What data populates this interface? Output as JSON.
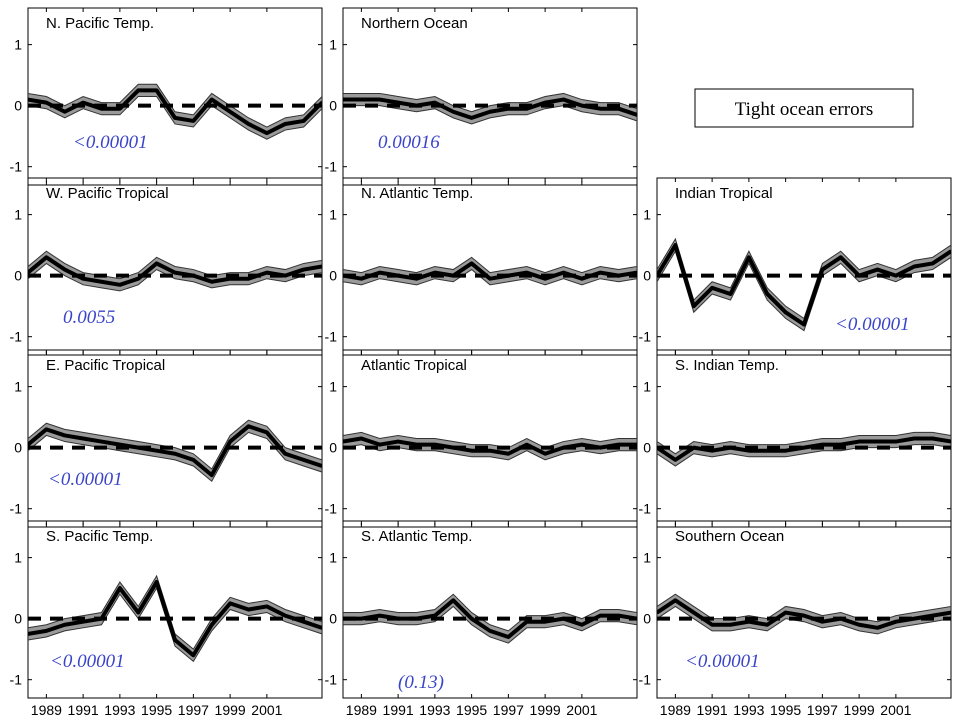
{
  "legend_box": {
    "text": "Tight ocean errors"
  },
  "x_tick_labels": [
    "1989",
    "1991",
    "1993",
    "1995",
    "1997",
    "1999",
    "2001"
  ],
  "colors": {
    "annotation": "#3a44c8",
    "band": "#9a9a9a",
    "line": "#000000"
  },
  "chart_data": [
    {
      "type": "line",
      "panel": "N. Pacific Temp.",
      "title": "N. Pacific Temp.",
      "annotation": "<0.00001",
      "x_range": [
        1988,
        2004
      ],
      "ylim": [
        -1.3,
        1.6
      ],
      "yticks": [
        -1,
        0,
        1
      ],
      "reference_line": 0,
      "reference_style": "dashed",
      "x": [
        1988,
        1989,
        1990,
        1991,
        1992,
        1993,
        1994,
        1995,
        1996,
        1997,
        1998,
        1999,
        2000,
        2001,
        2002,
        2003,
        2004
      ],
      "values": [
        0.1,
        0.05,
        -0.1,
        0.05,
        -0.05,
        -0.05,
        0.25,
        0.25,
        -0.2,
        -0.25,
        0.1,
        -0.1,
        -0.3,
        -0.45,
        -0.3,
        -0.25,
        0.05
      ]
    },
    {
      "type": "line",
      "panel": "Northern Ocean",
      "title": "Northern Ocean",
      "annotation": "0.00016",
      "x_range": [
        1988,
        2004
      ],
      "ylim": [
        -1.3,
        1.6
      ],
      "yticks": [
        -1,
        0,
        1
      ],
      "reference_line": 0,
      "reference_style": "dashed",
      "x": [
        1988,
        1989,
        1990,
        1991,
        1992,
        1993,
        1994,
        1995,
        1996,
        1997,
        1998,
        1999,
        2000,
        2001,
        2002,
        2003,
        2004
      ],
      "values": [
        0.1,
        0.1,
        0.1,
        0.05,
        0.0,
        0.05,
        -0.1,
        -0.2,
        -0.1,
        -0.05,
        -0.05,
        0.05,
        0.1,
        0.0,
        -0.05,
        -0.05,
        -0.15
      ]
    },
    {
      "type": "line",
      "panel": "W. Pacific Tropical",
      "title": "W. Pacific Tropical",
      "annotation": "0.0055",
      "x_range": [
        1988,
        2004
      ],
      "ylim": [
        -1.3,
        1.6
      ],
      "yticks": [
        -1,
        0,
        1
      ],
      "reference_line": 0,
      "reference_style": "dashed",
      "x": [
        1988,
        1989,
        1990,
        1991,
        1992,
        1993,
        1994,
        1995,
        1996,
        1997,
        1998,
        1999,
        2000,
        2001,
        2002,
        2003,
        2004
      ],
      "values": [
        0.05,
        0.3,
        0.1,
        -0.05,
        -0.1,
        -0.15,
        -0.05,
        0.2,
        0.05,
        0.0,
        -0.1,
        -0.05,
        -0.05,
        0.05,
        0.0,
        0.1,
        0.15
      ]
    },
    {
      "type": "line",
      "panel": "N. Atlantic Temp.",
      "title": "N. Atlantic Temp.",
      "annotation": "",
      "x_range": [
        1988,
        2004
      ],
      "ylim": [
        -1.3,
        1.6
      ],
      "yticks": [
        -1,
        0,
        1
      ],
      "reference_line": 0,
      "reference_style": "dashed",
      "x": [
        1988,
        1989,
        1990,
        1991,
        1992,
        1993,
        1994,
        1995,
        1996,
        1997,
        1998,
        1999,
        2000,
        2001,
        2002,
        2003,
        2004
      ],
      "values": [
        0.0,
        -0.05,
        0.05,
        0.0,
        -0.05,
        0.05,
        0.0,
        0.2,
        -0.05,
        0.0,
        0.05,
        -0.05,
        0.05,
        -0.05,
        0.05,
        0.0,
        0.05
      ]
    },
    {
      "type": "line",
      "panel": "Indian Tropical",
      "title": "Indian Tropical",
      "annotation": "<0.00001",
      "x_range": [
        1988,
        2004
      ],
      "ylim": [
        -1.3,
        1.6
      ],
      "yticks": [
        -1,
        0,
        1
      ],
      "reference_line": 0,
      "reference_style": "dashed",
      "x": [
        1988,
        1989,
        1990,
        1991,
        1992,
        1993,
        1994,
        1995,
        1996,
        1997,
        1998,
        1999,
        2000,
        2001,
        2002,
        2003,
        2004
      ],
      "values": [
        0.0,
        0.5,
        -0.5,
        -0.2,
        -0.3,
        0.3,
        -0.3,
        -0.6,
        -0.8,
        0.1,
        0.3,
        0.0,
        0.1,
        0.0,
        0.15,
        0.2,
        0.4
      ]
    },
    {
      "type": "line",
      "panel": "E. Pacific Tropical",
      "title": "E. Pacific Tropical",
      "annotation": "<0.00001",
      "x_range": [
        1988,
        2004
      ],
      "ylim": [
        -1.3,
        1.6
      ],
      "yticks": [
        -1,
        0,
        1
      ],
      "reference_line": 0,
      "reference_style": "dashed",
      "x": [
        1988,
        1989,
        1990,
        1991,
        1992,
        1993,
        1994,
        1995,
        1996,
        1997,
        1998,
        1999,
        2000,
        2001,
        2002,
        2003,
        2004
      ],
      "values": [
        0.05,
        0.3,
        0.2,
        0.15,
        0.1,
        0.05,
        0.0,
        -0.05,
        -0.1,
        -0.2,
        -0.45,
        0.1,
        0.35,
        0.25,
        -0.1,
        -0.2,
        -0.3
      ]
    },
    {
      "type": "line",
      "panel": "Atlantic Tropical",
      "title": "Atlantic Tropical",
      "annotation": "",
      "x_range": [
        1988,
        2004
      ],
      "ylim": [
        -1.3,
        1.6
      ],
      "yticks": [
        -1,
        0,
        1
      ],
      "reference_line": 0,
      "reference_style": "dashed",
      "x": [
        1988,
        1989,
        1990,
        1991,
        1992,
        1993,
        1994,
        1995,
        1996,
        1997,
        1998,
        1999,
        2000,
        2001,
        2002,
        2003,
        2004
      ],
      "values": [
        0.1,
        0.15,
        0.05,
        0.1,
        0.05,
        0.05,
        0.0,
        -0.05,
        -0.05,
        -0.1,
        0.05,
        -0.1,
        0.0,
        0.05,
        0.0,
        0.05,
        0.05
      ]
    },
    {
      "type": "line",
      "panel": "S. Indian Temp.",
      "title": "S. Indian Temp.",
      "annotation": "",
      "x_range": [
        1988,
        2004
      ],
      "ylim": [
        -1.3,
        1.6
      ],
      "yticks": [
        -1,
        0,
        1
      ],
      "reference_line": 0,
      "reference_style": "dashed",
      "x": [
        1988,
        1989,
        1990,
        1991,
        1992,
        1993,
        1994,
        1995,
        1996,
        1997,
        1998,
        1999,
        2000,
        2001,
        2002,
        2003,
        2004
      ],
      "values": [
        0.0,
        -0.2,
        0.0,
        -0.05,
        0.0,
        -0.05,
        -0.05,
        -0.05,
        0.0,
        0.05,
        0.05,
        0.1,
        0.1,
        0.1,
        0.15,
        0.15,
        0.1
      ]
    },
    {
      "type": "line",
      "panel": "S. Pacific Temp.",
      "title": "S. Pacific Temp.",
      "annotation": "<0.00001",
      "x_range": [
        1988,
        2004
      ],
      "ylim": [
        -1.3,
        1.6
      ],
      "yticks": [
        -1,
        0,
        1
      ],
      "reference_line": 0,
      "reference_style": "dashed",
      "x": [
        1988,
        1989,
        1990,
        1991,
        1992,
        1993,
        1994,
        1995,
        1996,
        1997,
        1998,
        1999,
        2000,
        2001,
        2002,
        2003,
        2004
      ],
      "values": [
        -0.25,
        -0.2,
        -0.1,
        -0.05,
        0.0,
        0.5,
        0.1,
        0.6,
        -0.35,
        -0.6,
        -0.1,
        0.25,
        0.15,
        0.2,
        0.05,
        -0.05,
        -0.15
      ]
    },
    {
      "type": "line",
      "panel": "S. Atlantic Temp.",
      "title": "S. Atlantic Temp.",
      "annotation": "(0.13)",
      "x_range": [
        1988,
        2004
      ],
      "ylim": [
        -1.3,
        1.6
      ],
      "yticks": [
        -1,
        0,
        1
      ],
      "reference_line": 0,
      "reference_style": "dashed",
      "x": [
        1988,
        1989,
        1990,
        1991,
        1992,
        1993,
        1994,
        1995,
        1996,
        1997,
        1998,
        1999,
        2000,
        2001,
        2002,
        2003,
        2004
      ],
      "values": [
        0.0,
        0.0,
        0.05,
        0.0,
        0.0,
        0.05,
        0.3,
        0.0,
        -0.2,
        -0.3,
        -0.05,
        -0.05,
        0.0,
        -0.1,
        0.05,
        0.05,
        0.0
      ]
    },
    {
      "type": "line",
      "panel": "Southern Ocean",
      "title": "Southern Ocean",
      "annotation": "<0.00001",
      "x_range": [
        1988,
        2004
      ],
      "ylim": [
        -1.3,
        1.6
      ],
      "yticks": [
        -1,
        0,
        1
      ],
      "reference_line": 0,
      "reference_style": "dashed",
      "x": [
        1988,
        1989,
        1990,
        1991,
        1992,
        1993,
        1994,
        1995,
        1996,
        1997,
        1998,
        1999,
        2000,
        2001,
        2002,
        2003,
        2004
      ],
      "values": [
        0.1,
        0.3,
        0.1,
        -0.1,
        -0.1,
        -0.05,
        -0.1,
        0.1,
        0.05,
        -0.05,
        0.0,
        -0.1,
        -0.15,
        -0.05,
        0.0,
        0.05,
        0.1
      ]
    }
  ]
}
